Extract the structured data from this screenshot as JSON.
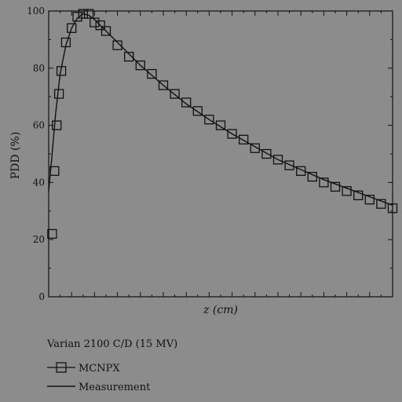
{
  "chart_data": {
    "type": "scatter",
    "title": "",
    "xlabel": "z (cm)",
    "ylabel": "PDD (%)",
    "xlim": [
      0,
      30
    ],
    "ylim": [
      0,
      100
    ],
    "yticks": [
      0,
      20,
      40,
      60,
      80,
      100
    ],
    "ytick_labels": [
      "0",
      "20",
      "40",
      "60",
      "80",
      "100"
    ],
    "grid": false,
    "legend": {
      "placement": "bottom-left",
      "title": "Varian 2100 C/D (15 MV)"
    },
    "colors": {
      "background": "#8c8c8c",
      "ink": "#111111"
    },
    "series": [
      {
        "name": "MCNPX",
        "marker": "square",
        "x": [
          0.3,
          0.5,
          0.7,
          0.9,
          1.1,
          1.5,
          2.0,
          2.5,
          3.0,
          3.5,
          4.0,
          4.5,
          5.0,
          6.0,
          7.0,
          8.0,
          9.0,
          10.0,
          11.0,
          12.0,
          13.0,
          14.0,
          15.0,
          16.0,
          17.0,
          18.0,
          19.0,
          20.0,
          21.0,
          22.0,
          23.0,
          24.0,
          25.0,
          26.0,
          27.0,
          28.0,
          29.0,
          30.0
        ],
        "y": [
          22,
          44,
          60,
          71,
          79,
          89,
          94,
          98,
          99,
          99,
          96,
          95,
          93,
          88,
          84,
          81,
          78,
          74,
          71,
          68,
          65,
          62,
          60,
          57,
          55,
          52,
          50,
          48,
          46,
          44,
          42,
          40,
          38.5,
          37,
          35.5,
          34,
          32.5,
          31
        ]
      },
      {
        "name": "Measurement",
        "marker": "line",
        "x": [
          0.0,
          0.3,
          0.6,
          1.0,
          1.5,
          2.0,
          2.5,
          3.0,
          3.5,
          4.0,
          5.0,
          6.0,
          7.0,
          8.0,
          9.0,
          10.0,
          12.0,
          14.0,
          16.0,
          18.0,
          20.0,
          22.0,
          24.0,
          26.0,
          28.0,
          30.0
        ],
        "y": [
          37,
          50,
          64,
          78,
          88,
          94,
          97.5,
          99,
          98.5,
          97,
          93,
          89,
          85,
          81,
          77.5,
          74,
          67.5,
          62,
          57,
          52.5,
          48,
          44.5,
          41,
          38,
          35,
          32
        ]
      }
    ]
  }
}
